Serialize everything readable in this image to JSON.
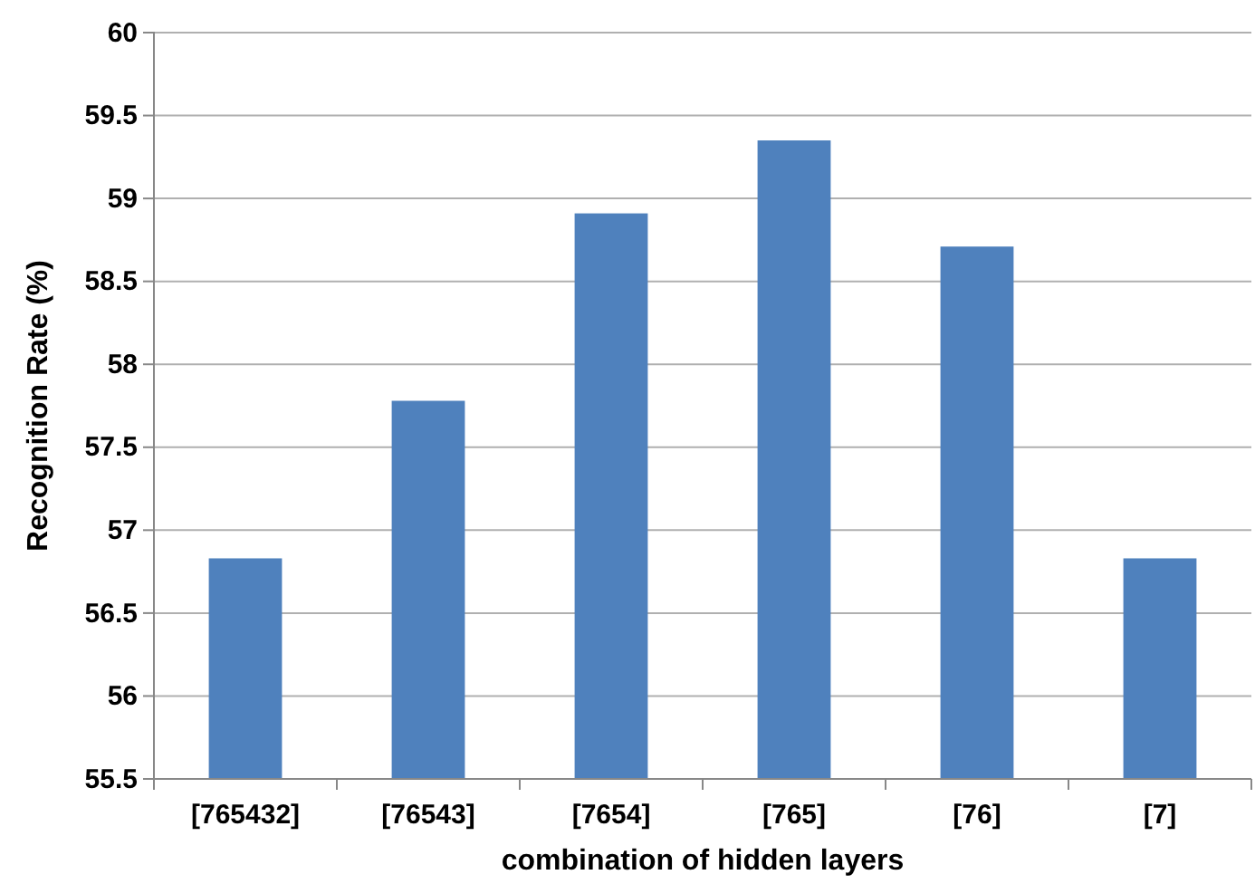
{
  "chart_data": {
    "type": "bar",
    "xlabel": "combination of hidden layers",
    "ylabel": "Recognition Rate (%)",
    "categories": [
      "[765432]",
      "[76543]",
      "[7654]",
      "[765]",
      "[76]",
      "[7]"
    ],
    "values": [
      56.83,
      57.78,
      58.91,
      59.35,
      58.71,
      56.83
    ],
    "color": "#4f81bd",
    "ylim": [
      55.5,
      60
    ],
    "yticks": [
      55.5,
      56,
      56.5,
      57,
      57.5,
      58,
      58.5,
      59,
      59.5,
      60
    ],
    "grid": true
  }
}
